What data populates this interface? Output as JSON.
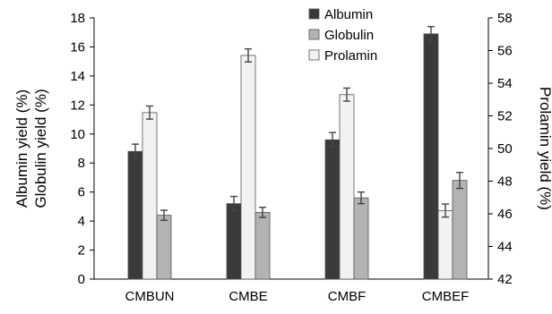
{
  "chart_data": {
    "type": "bar",
    "categories": [
      "CMBUN",
      "CMBE",
      "CMBF",
      "CMBEF"
    ],
    "series": [
      {
        "name": "Albumin",
        "axis": "left",
        "color": "#3a3a3a",
        "values": [
          8.8,
          5.2,
          9.6,
          16.9
        ],
        "errors": [
          0.5,
          0.5,
          0.5,
          0.5
        ]
      },
      {
        "name": "Prolamin",
        "axis": "right",
        "color": "#f2f2f2",
        "values": [
          52.2,
          55.7,
          53.3,
          46.2
        ],
        "errors": [
          0.4,
          0.4,
          0.4,
          0.4
        ]
      },
      {
        "name": "Globulin",
        "axis": "left",
        "color": "#b3b3b3",
        "values": [
          4.4,
          4.6,
          5.6,
          6.8
        ],
        "errors": [
          0.35,
          0.35,
          0.4,
          0.55
        ]
      }
    ],
    "legend_order": [
      "Albumin",
      "Globulin",
      "Prolamin"
    ],
    "ylabel_left": [
      "Albumin yield (%)",
      "Globulin yield (%)"
    ],
    "ylabel_right": "Prolamin yield (%)",
    "ylim_left": [
      0,
      18
    ],
    "ylim_right": [
      42,
      58
    ],
    "yticks_left": [
      "0",
      "2",
      "4",
      "6",
      "8",
      "10",
      "12",
      "14",
      "16",
      "18"
    ],
    "yticks_right": [
      "42",
      "44",
      "46",
      "48",
      "50",
      "52",
      "54",
      "56",
      "58"
    ],
    "grid": false,
    "legend_position": "top-center"
  }
}
